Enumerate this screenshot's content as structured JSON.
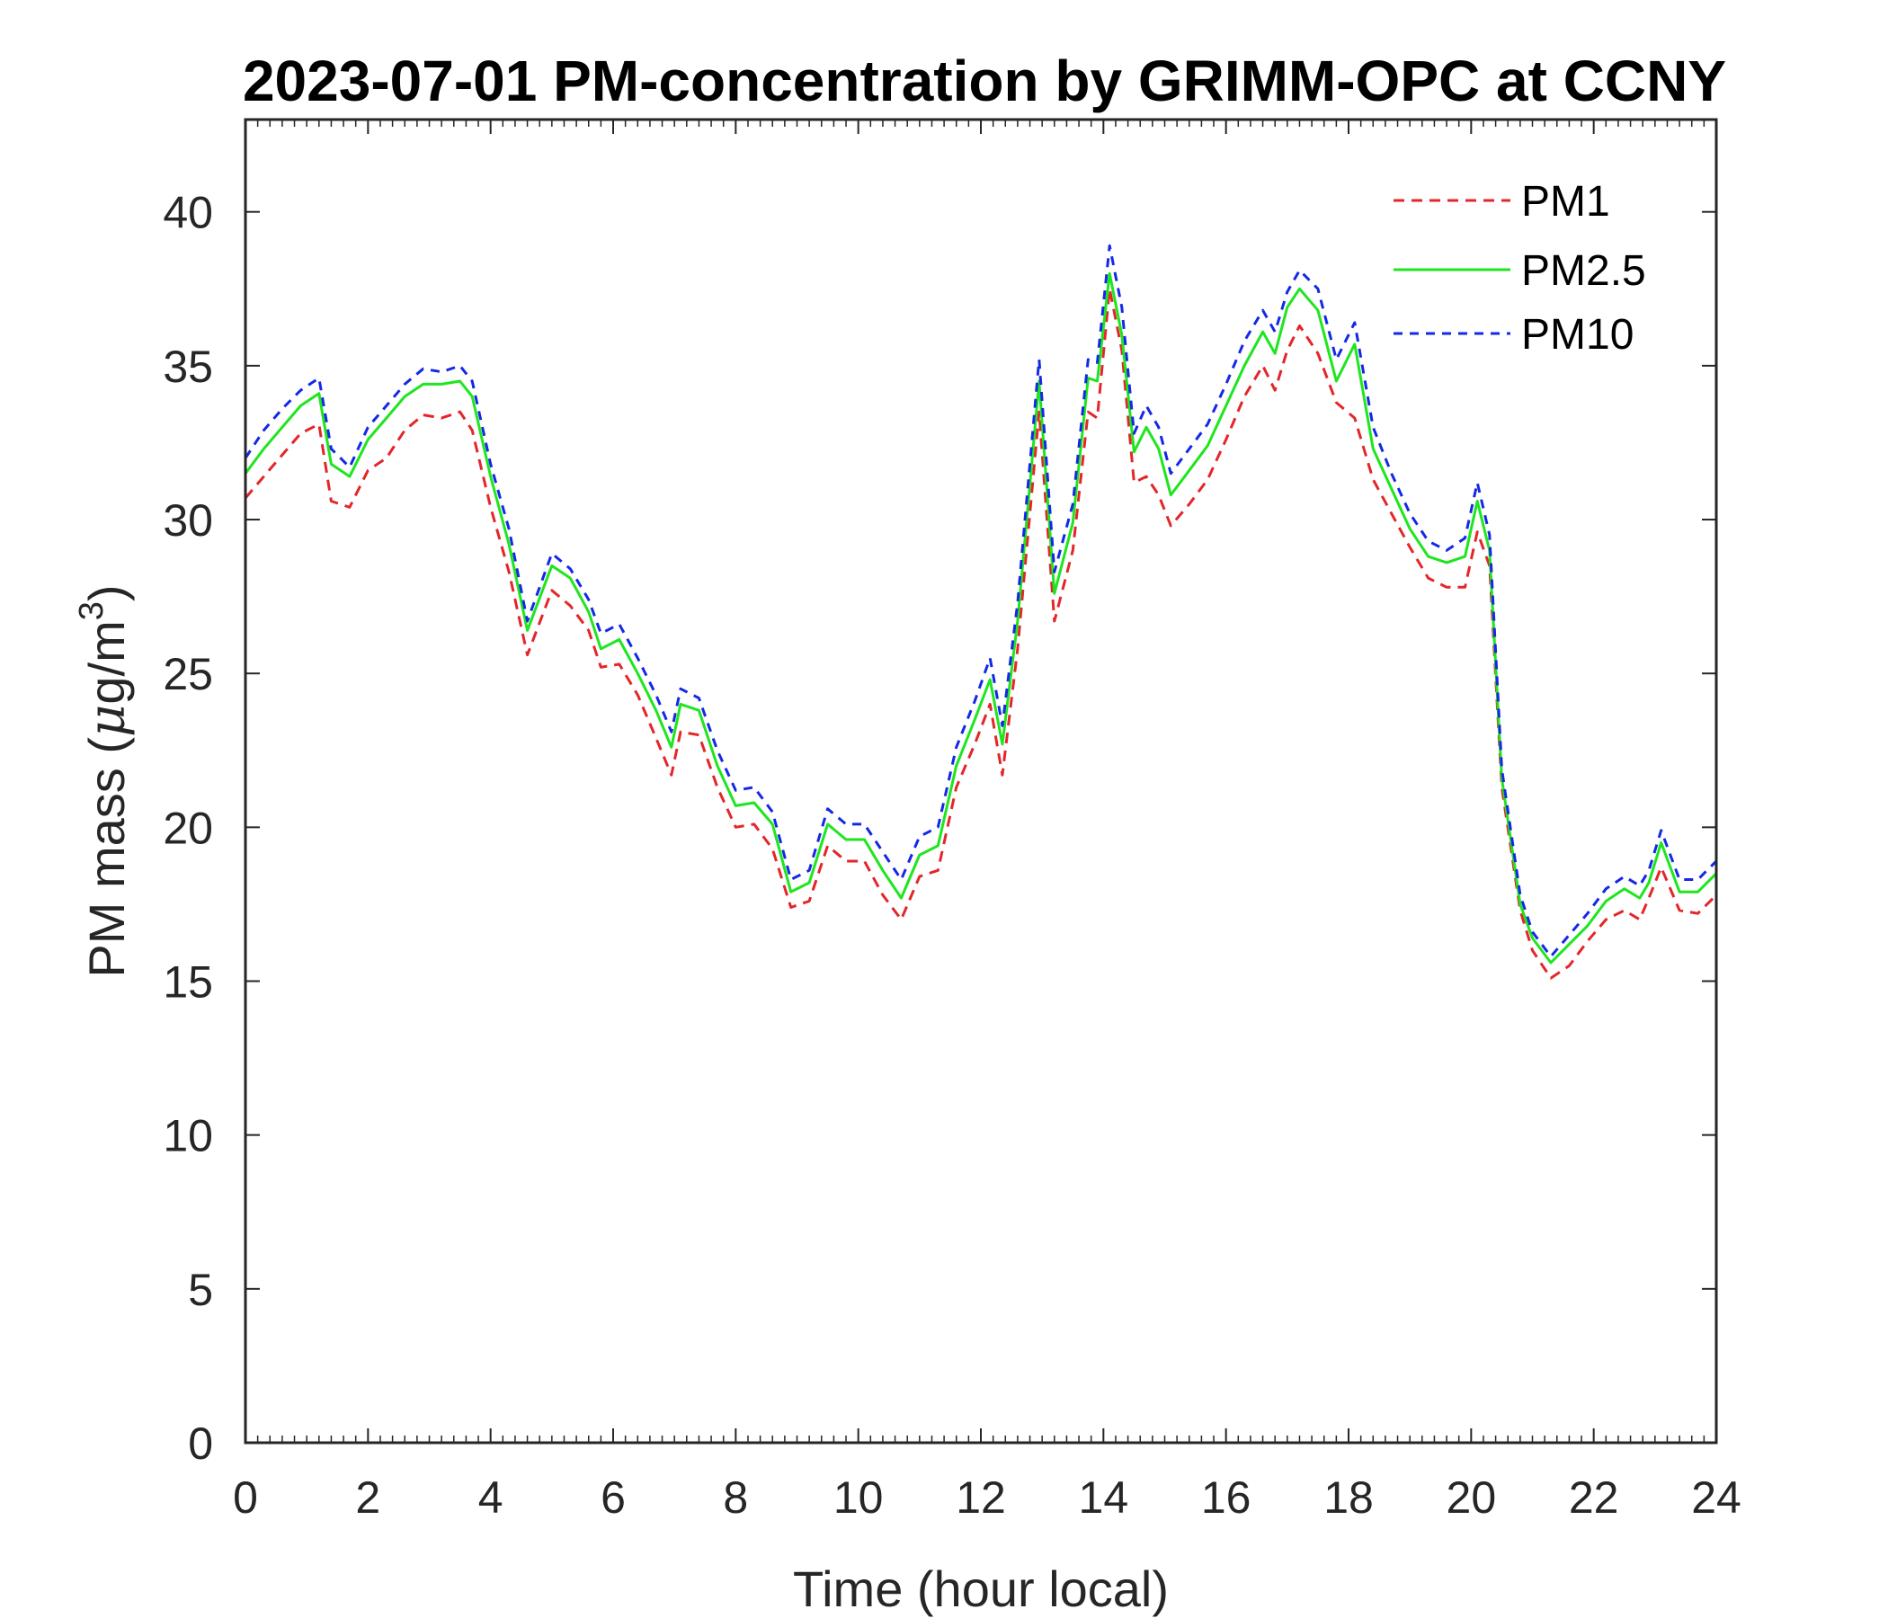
{
  "chart_data": {
    "type": "line",
    "title": "2023-07-01 PM-concentration by GRIMM-OPC at CCNY",
    "xlabel": "Time (hour local)",
    "ylabel": {
      "prefix": "PM mass (",
      "mu": "μ",
      "unit": "g/m",
      "exp": "3",
      "suffix": ")"
    },
    "xlim": [
      0,
      24
    ],
    "ylim": [
      0,
      43
    ],
    "xticks": [
      0,
      2,
      4,
      6,
      8,
      10,
      12,
      14,
      16,
      18,
      20,
      22,
      24
    ],
    "xtick_labels": [
      "0",
      "2",
      "4",
      "6",
      "8",
      "10",
      "12",
      "14",
      "16",
      "18",
      "20",
      "22",
      "24"
    ],
    "yticks": [
      0,
      5,
      10,
      15,
      20,
      25,
      30,
      35,
      40
    ],
    "ytick_labels": [
      "0",
      "5",
      "10",
      "15",
      "20",
      "25",
      "30",
      "35",
      "40"
    ],
    "grid": false,
    "legend_position": "top-right",
    "x": [
      0,
      0.3,
      0.6,
      0.9,
      1.2,
      1.4,
      1.7,
      2.0,
      2.3,
      2.6,
      2.9,
      3.2,
      3.5,
      3.7,
      4.0,
      4.3,
      4.6,
      5.0,
      5.3,
      5.6,
      5.8,
      6.1,
      6.4,
      6.7,
      6.95,
      7.1,
      7.4,
      7.7,
      8.0,
      8.3,
      8.6,
      8.9,
      9.2,
      9.5,
      9.8,
      10.1,
      10.4,
      10.7,
      11.0,
      11.3,
      11.6,
      11.9,
      12.15,
      12.35,
      12.6,
      12.95,
      13.2,
      13.5,
      13.75,
      13.9,
      14.1,
      14.3,
      14.5,
      14.7,
      14.9,
      15.1,
      15.4,
      15.7,
      16.0,
      16.3,
      16.6,
      16.8,
      17.0,
      17.2,
      17.5,
      17.8,
      18.1,
      18.4,
      18.7,
      19.0,
      19.3,
      19.6,
      19.9,
      20.1,
      20.3,
      20.5,
      20.8,
      21.0,
      21.3,
      21.6,
      21.9,
      22.2,
      22.5,
      22.75,
      22.9,
      23.1,
      23.4,
      23.7,
      24.0
    ],
    "series": [
      {
        "name": "PM1",
        "color": "#e3262a",
        "dash": "12,8",
        "values": [
          30.7,
          31.4,
          32.1,
          32.8,
          33.1,
          30.6,
          30.4,
          31.6,
          32.0,
          32.9,
          33.4,
          33.3,
          33.5,
          32.9,
          30.4,
          28.3,
          25.6,
          27.7,
          27.2,
          26.4,
          25.2,
          25.3,
          24.3,
          22.9,
          21.7,
          23.1,
          23.0,
          21.3,
          20.0,
          20.1,
          19.3,
          17.4,
          17.6,
          19.4,
          18.9,
          18.9,
          17.8,
          17.0,
          18.4,
          18.6,
          21.3,
          22.7,
          24.0,
          21.7,
          25.8,
          33.5,
          26.7,
          29.0,
          33.5,
          33.3,
          37.5,
          35.5,
          31.2,
          31.4,
          30.8,
          29.8,
          30.5,
          31.3,
          32.6,
          34.0,
          35.0,
          34.2,
          35.5,
          36.3,
          35.4,
          33.8,
          33.3,
          31.3,
          30.2,
          29.1,
          28.1,
          27.8,
          27.8,
          29.6,
          28.5,
          21.3,
          17.3,
          16.0,
          15.1,
          15.5,
          16.3,
          17.0,
          17.3,
          17.0,
          17.7,
          18.7,
          17.3,
          17.2,
          17.8
        ]
      },
      {
        "name": "PM2.5",
        "color": "#1ee61e",
        "dash": "",
        "values": [
          31.5,
          32.3,
          33.0,
          33.7,
          34.1,
          31.8,
          31.4,
          32.6,
          33.3,
          34.0,
          34.4,
          34.4,
          34.5,
          34.0,
          31.4,
          29.2,
          26.4,
          28.5,
          28.1,
          27.0,
          25.8,
          26.1,
          25.0,
          23.8,
          22.6,
          24.0,
          23.8,
          22.0,
          20.7,
          20.8,
          20.1,
          17.9,
          18.2,
          20.1,
          19.6,
          19.6,
          18.6,
          17.7,
          19.1,
          19.4,
          22.0,
          23.5,
          24.8,
          22.7,
          26.7,
          34.5,
          27.6,
          29.9,
          34.6,
          34.5,
          38.0,
          36.0,
          32.2,
          33.0,
          32.3,
          30.8,
          31.6,
          32.4,
          33.7,
          35.0,
          36.1,
          35.4,
          36.9,
          37.5,
          36.8,
          34.5,
          35.7,
          32.3,
          31.0,
          29.7,
          28.8,
          28.6,
          28.8,
          30.6,
          29.0,
          21.6,
          17.5,
          16.4,
          15.6,
          16.2,
          16.8,
          17.6,
          18.0,
          17.7,
          18.2,
          19.5,
          17.9,
          17.9,
          18.5
        ]
      },
      {
        "name": "PM10",
        "color": "#1428e6",
        "dash": "10,8",
        "values": [
          32.0,
          32.9,
          33.6,
          34.2,
          34.6,
          32.3,
          31.7,
          33.0,
          33.7,
          34.4,
          34.9,
          34.8,
          35.0,
          34.5,
          31.8,
          29.7,
          26.7,
          28.9,
          28.4,
          27.4,
          26.3,
          26.6,
          25.5,
          24.3,
          23.1,
          24.5,
          24.2,
          22.5,
          21.2,
          21.3,
          20.5,
          18.3,
          18.6,
          20.6,
          20.1,
          20.1,
          19.2,
          18.3,
          19.7,
          20.0,
          22.6,
          24.1,
          25.5,
          23.3,
          27.3,
          35.2,
          28.3,
          30.5,
          35.2,
          35.1,
          38.9,
          36.9,
          32.8,
          33.7,
          33.0,
          31.5,
          32.3,
          33.1,
          34.4,
          35.8,
          36.8,
          36.1,
          37.4,
          38.1,
          37.5,
          35.2,
          36.4,
          33.0,
          31.5,
          30.2,
          29.3,
          29.0,
          29.4,
          31.2,
          29.5,
          21.9,
          17.8,
          16.6,
          15.8,
          16.5,
          17.2,
          18.0,
          18.4,
          18.1,
          18.6,
          19.9,
          18.3,
          18.3,
          18.9
        ]
      }
    ]
  }
}
